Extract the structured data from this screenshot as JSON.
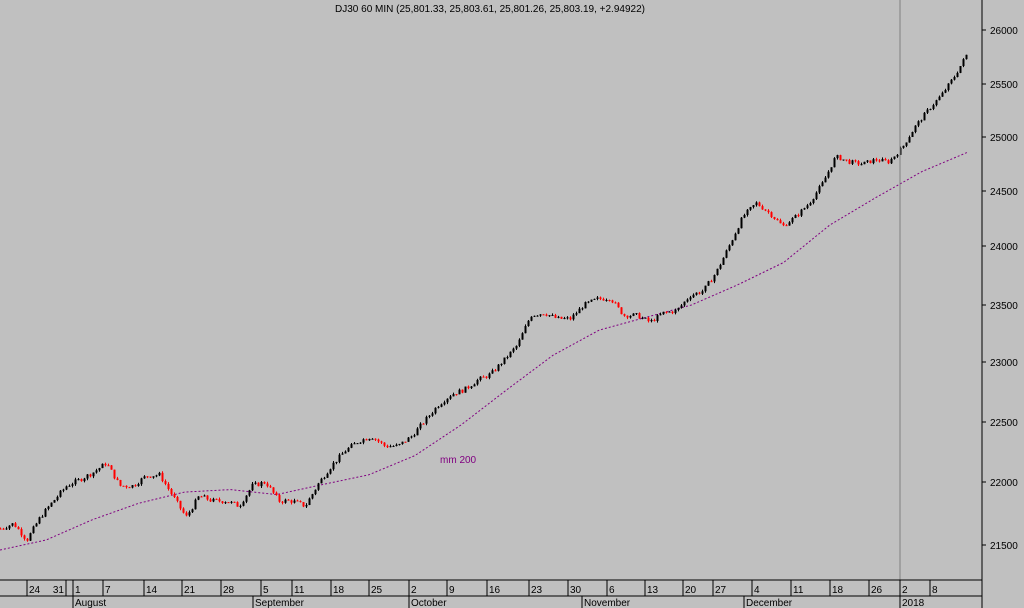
{
  "chart_data": {
    "type": "candlestick",
    "title": "DJ30 60 MIN (25,801.33, 25,803.61, 25,801.26, 25,803.19, +2.94922)",
    "y_ticks": [
      21500,
      22000,
      22500,
      23000,
      23500,
      24000,
      24500,
      25000,
      25500,
      26000
    ],
    "y_tick_labels": [
      "21500",
      "22000",
      "22500",
      "23000",
      "23500",
      "24000",
      "24500",
      "25000",
      "25500",
      "26000"
    ],
    "x_day_ticks": [
      "24",
      "31",
      "1",
      "7",
      "14",
      "21",
      "28",
      "5",
      "11",
      "18",
      "25",
      "2",
      "9",
      "16",
      "23",
      "30",
      "6",
      "13",
      "20",
      "27",
      "4",
      "11",
      "18",
      "26",
      "2",
      "8"
    ],
    "x_month_labels": [
      "August",
      "September",
      "October",
      "November",
      "December",
      "2018"
    ],
    "price_path": [
      21630,
      21670,
      21540,
      21720,
      21850,
      21970,
      22020,
      22080,
      22160,
      21970,
      21970,
      22050,
      22060,
      21890,
      21720,
      21890,
      21850,
      21850,
      21810,
      21970,
      22000,
      21850,
      21850,
      21810,
      21990,
      22140,
      22260,
      22340,
      22380,
      22300,
      22300,
      22380,
      22510,
      22640,
      22730,
      22770,
      22850,
      22900,
      23020,
      23150,
      23410,
      23430,
      23380,
      23380,
      23500,
      23550,
      23560,
      23410,
      23410,
      23350,
      23430,
      23450,
      23580,
      23620,
      23780,
      24010,
      24270,
      24390,
      24300,
      24180,
      24270,
      24390,
      24570,
      24820,
      24770,
      24750,
      24790,
      24770,
      24900,
      25100,
      25260,
      25400,
      25580,
      25800
    ],
    "ma_label": "mm 200",
    "ma_values": [
      21460,
      21540,
      21700,
      21830,
      21920,
      21940,
      21900,
      21980,
      22060,
      22220,
      22475,
      22770,
      23060,
      23280,
      23390,
      23500,
      23670,
      23860,
      24190,
      24440,
      24680,
      24860
    ],
    "colors": {
      "up": "#000000",
      "down": "#ff0000",
      "ma": "#800080",
      "background": "#c0c0c0"
    }
  }
}
